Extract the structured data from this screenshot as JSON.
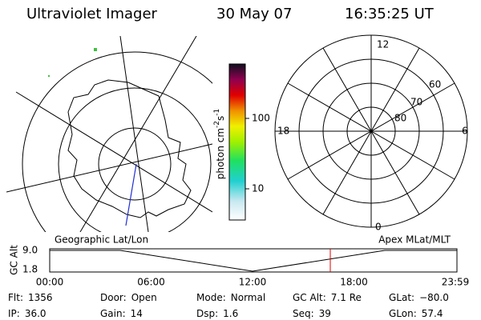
{
  "header": {
    "title": "Ultraviolet Imager",
    "date": "30 May 07",
    "time": "16:35:25 UT"
  },
  "colorbar": {
    "label": "photon cm",
    "exp1": "-2",
    "unit2": "s",
    "exp2": "-1",
    "ticks": [
      "100",
      "10"
    ]
  },
  "polar_plot": {
    "mlt_labels": [
      "12",
      "18",
      "6",
      "0"
    ],
    "lat_labels": [
      "60",
      "70",
      "80"
    ]
  },
  "timeline": {
    "y_label": "GC Alt",
    "y_ticks": [
      "9.0",
      "1.8"
    ],
    "left_title": "Geographic Lat/Lon",
    "right_title": "Apex MLat/MLT",
    "x_ticks": [
      "00:00",
      "06:00",
      "12:00",
      "18:00",
      "23:59"
    ]
  },
  "info": {
    "rows": [
      [
        {
          "label": "Flt:",
          "value": "1356"
        },
        {
          "label": "Door:",
          "value": "Open"
        },
        {
          "label": "Mode:",
          "value": "Normal"
        },
        {
          "label": "GC Alt:",
          "value": "7.1 Re"
        },
        {
          "label": "GLat:",
          "value": "−80.0"
        }
      ],
      [
        {
          "label": "IP:",
          "value": "36.0"
        },
        {
          "label": "Gain:",
          "value": "14"
        },
        {
          "label": "Dsp:",
          "value": "1.6"
        },
        {
          "label": "Seq:",
          "value": "39"
        },
        {
          "label": "GLon:",
          "value": "57.4"
        }
      ]
    ]
  }
}
